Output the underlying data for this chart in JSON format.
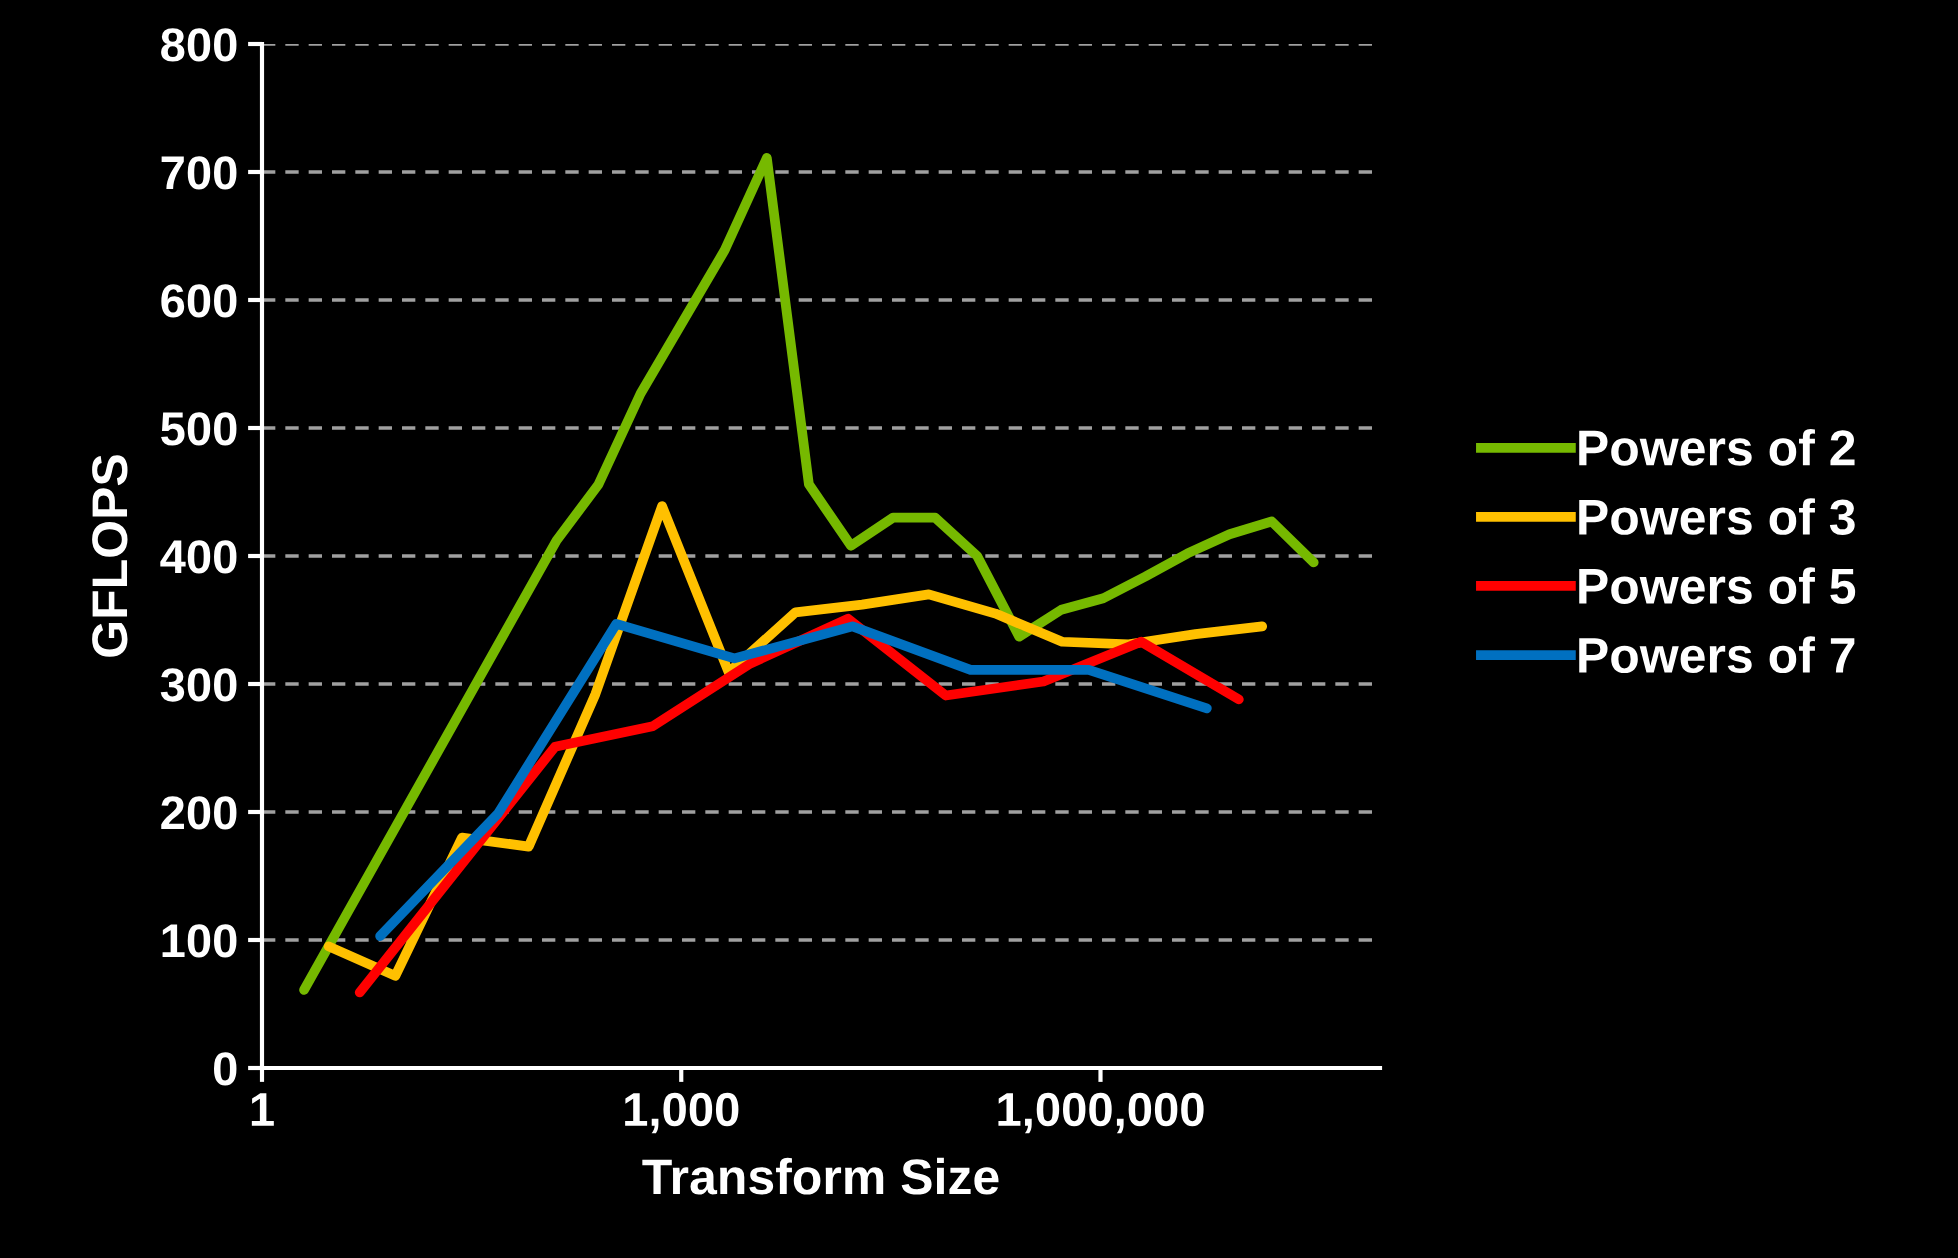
{
  "chart_data": {
    "type": "line",
    "xlabel": "Transform Size",
    "ylabel": "GFLOPS",
    "log": "x",
    "xlim": [
      1,
      100000000
    ],
    "xticks": [
      1,
      {
        "value": 1000,
        "label": "1,000"
      },
      {
        "value": 1000000,
        "label": "1,000,000"
      }
    ],
    "ylim": [
      0,
      800
    ],
    "yticks": [
      0,
      100,
      200,
      300,
      400,
      500,
      600,
      700,
      800
    ],
    "grid": "y",
    "legend": "right",
    "marker": "none",
    "line_style": "solid",
    "series": [
      {
        "name": "Powers of 2",
        "color": "#76b900",
        "x": [
          2,
          128,
          256,
          512,
          2048,
          4096,
          8192,
          16384,
          32768,
          65536,
          131072,
          262144,
          524288,
          1048576,
          2097152,
          4194304,
          8388608,
          16777216,
          33554432
        ],
        "values": [
          61,
          412,
          456,
          527,
          639,
          711,
          456,
          408,
          430,
          430,
          400,
          337,
          358,
          367,
          384,
          402,
          417,
          427,
          395
        ]
      },
      {
        "name": "Powers of 3",
        "color": "#ffc000",
        "x": [
          3,
          9,
          27,
          81,
          243,
          729,
          2187,
          6561,
          19683,
          59049,
          177147,
          531441,
          1594323,
          4782969,
          14348907
        ],
        "values": [
          95,
          72,
          180,
          173,
          292,
          439,
          309,
          356,
          362,
          370,
          355,
          333,
          331,
          339,
          345
        ]
      },
      {
        "name": "Powers of 5",
        "color": "#ff0000",
        "x": [
          5,
          125,
          625,
          3125,
          15625,
          78125,
          390625,
          1953125,
          9765625
        ],
        "values": [
          59,
          251,
          267,
          316,
          351,
          291,
          302,
          333,
          288
        ]
      },
      {
        "name": "Powers of 7",
        "color": "#0070c0",
        "x": [
          7,
          49,
          343,
          2401,
          16807,
          117649,
          823543,
          5764801
        ],
        "values": [
          103,
          199,
          347,
          320,
          345,
          311,
          311,
          281
        ]
      }
    ]
  }
}
